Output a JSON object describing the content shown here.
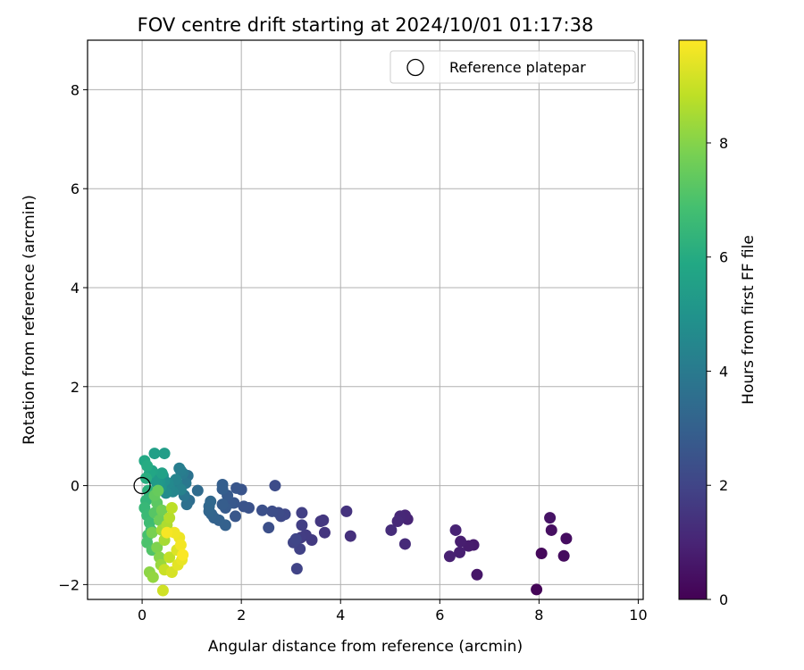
{
  "chart_data": {
    "type": "scatter",
    "title": "FOV centre drift starting at 2024/10/01 01:17:38",
    "xlabel": "Angular distance from reference (arcmin)",
    "ylabel": "Rotation from reference (arcmin)",
    "xlim": [
      -1.1,
      10.1
    ],
    "ylim": [
      -2.3,
      9.0
    ],
    "xticks": [
      0,
      2,
      4,
      6,
      8,
      10
    ],
    "yticks": [
      -2,
      0,
      2,
      4,
      6,
      8
    ],
    "grid": true,
    "legend": {
      "placement": "top-right",
      "entries": [
        {
          "label": "Reference platepar",
          "marker": "open-circle"
        }
      ]
    },
    "reference_point": {
      "x": 0,
      "y": 0
    },
    "colorbar": {
      "label": "Hours from first FF file",
      "colormap": "viridis",
      "range": [
        0,
        9.8
      ],
      "ticks": [
        0,
        2,
        4,
        6,
        8
      ]
    },
    "points": [
      {
        "x": 7.95,
        "y": -2.1,
        "c": 0.1
      },
      {
        "x": 8.05,
        "y": -1.37,
        "c": 0.2
      },
      {
        "x": 8.5,
        "y": -1.42,
        "c": 0.3
      },
      {
        "x": 8.55,
        "y": -1.07,
        "c": 0.35
      },
      {
        "x": 8.25,
        "y": -0.9,
        "c": 0.4
      },
      {
        "x": 8.22,
        "y": -0.65,
        "c": 0.5
      },
      {
        "x": 6.75,
        "y": -1.8,
        "c": 0.6
      },
      {
        "x": 6.68,
        "y": -1.2,
        "c": 0.7
      },
      {
        "x": 6.58,
        "y": -1.22,
        "c": 0.75
      },
      {
        "x": 6.42,
        "y": -1.13,
        "c": 0.8
      },
      {
        "x": 6.4,
        "y": -1.35,
        "c": 0.85
      },
      {
        "x": 6.2,
        "y": -1.43,
        "c": 0.9
      },
      {
        "x": 6.32,
        "y": -0.9,
        "c": 0.95
      },
      {
        "x": 5.35,
        "y": -0.68,
        "c": 1.0
      },
      {
        "x": 5.3,
        "y": -0.6,
        "c": 1.05
      },
      {
        "x": 5.2,
        "y": -0.62,
        "c": 1.1
      },
      {
        "x": 5.15,
        "y": -0.72,
        "c": 1.15
      },
      {
        "x": 5.3,
        "y": -1.18,
        "c": 1.2
      },
      {
        "x": 5.02,
        "y": -0.9,
        "c": 1.25
      },
      {
        "x": 4.2,
        "y": -1.02,
        "c": 1.35
      },
      {
        "x": 4.12,
        "y": -0.52,
        "c": 1.45
      },
      {
        "x": 3.68,
        "y": -0.95,
        "c": 1.5
      },
      {
        "x": 3.65,
        "y": -0.7,
        "c": 1.55
      },
      {
        "x": 3.6,
        "y": -0.72,
        "c": 1.6
      },
      {
        "x": 3.42,
        "y": -1.1,
        "c": 1.65
      },
      {
        "x": 3.3,
        "y": -1.0,
        "c": 1.7
      },
      {
        "x": 3.2,
        "y": -1.05,
        "c": 1.75
      },
      {
        "x": 3.22,
        "y": -0.8,
        "c": 1.8
      },
      {
        "x": 3.22,
        "y": -0.55,
        "c": 1.85
      },
      {
        "x": 3.18,
        "y": -1.28,
        "c": 1.9
      },
      {
        "x": 3.12,
        "y": -1.68,
        "c": 1.95
      },
      {
        "x": 3.05,
        "y": -1.15,
        "c": 2.0
      },
      {
        "x": 3.1,
        "y": -1.08,
        "c": 2.05
      },
      {
        "x": 2.88,
        "y": -0.58,
        "c": 2.1
      },
      {
        "x": 2.8,
        "y": -0.62,
        "c": 2.15
      },
      {
        "x": 2.75,
        "y": -0.55,
        "c": 2.2
      },
      {
        "x": 2.68,
        "y": 0.0,
        "c": 2.25
      },
      {
        "x": 2.62,
        "y": -0.52,
        "c": 2.3
      },
      {
        "x": 2.55,
        "y": -0.85,
        "c": 2.35
      },
      {
        "x": 2.42,
        "y": -0.5,
        "c": 2.4
      },
      {
        "x": 2.15,
        "y": -0.45,
        "c": 2.45
      },
      {
        "x": 2.05,
        "y": -0.42,
        "c": 2.5
      },
      {
        "x": 2.0,
        "y": -0.08,
        "c": 2.55
      },
      {
        "x": 1.9,
        "y": -0.05,
        "c": 2.6
      },
      {
        "x": 1.85,
        "y": -0.35,
        "c": 2.62
      },
      {
        "x": 1.88,
        "y": -0.62,
        "c": 2.65
      },
      {
        "x": 1.78,
        "y": -0.35,
        "c": 2.7
      },
      {
        "x": 1.72,
        "y": -0.2,
        "c": 2.75
      },
      {
        "x": 1.68,
        "y": -0.45,
        "c": 2.8
      },
      {
        "x": 1.62,
        "y": -0.38,
        "c": 2.85
      },
      {
        "x": 1.62,
        "y": -0.07,
        "c": 2.9
      },
      {
        "x": 1.62,
        "y": 0.02,
        "c": 2.95
      },
      {
        "x": 1.68,
        "y": -0.8,
        "c": 3.0
      },
      {
        "x": 1.55,
        "y": -0.7,
        "c": 3.05
      },
      {
        "x": 1.45,
        "y": -0.65,
        "c": 3.1
      },
      {
        "x": 1.4,
        "y": -0.58,
        "c": 3.15
      },
      {
        "x": 1.35,
        "y": -0.52,
        "c": 3.2
      },
      {
        "x": 1.35,
        "y": -0.42,
        "c": 3.25
      },
      {
        "x": 1.38,
        "y": -0.32,
        "c": 3.3
      },
      {
        "x": 1.12,
        "y": -0.1,
        "c": 3.4
      },
      {
        "x": 0.95,
        "y": -0.3,
        "c": 3.5
      },
      {
        "x": 0.9,
        "y": -0.38,
        "c": 3.6
      },
      {
        "x": 0.92,
        "y": 0.2,
        "c": 3.7
      },
      {
        "x": 0.85,
        "y": -0.2,
        "c": 3.8
      },
      {
        "x": 0.88,
        "y": 0.05,
        "c": 3.9
      },
      {
        "x": 0.82,
        "y": 0.25,
        "c": 4.0
      },
      {
        "x": 0.78,
        "y": 0.3,
        "c": 4.1
      },
      {
        "x": 0.75,
        "y": 0.35,
        "c": 4.15
      },
      {
        "x": 0.7,
        "y": 0.05,
        "c": 4.2
      },
      {
        "x": 0.78,
        "y": -0.08,
        "c": 4.3
      },
      {
        "x": 0.68,
        "y": 0.12,
        "c": 4.4
      },
      {
        "x": 0.62,
        "y": -0.12,
        "c": 4.45
      },
      {
        "x": 0.55,
        "y": -0.05,
        "c": 4.5
      },
      {
        "x": 0.52,
        "y": 0.05,
        "c": 4.6
      },
      {
        "x": 0.48,
        "y": -0.15,
        "c": 4.7
      },
      {
        "x": 0.42,
        "y": 0.2,
        "c": 4.8
      },
      {
        "x": 0.45,
        "y": 0.1,
        "c": 4.9
      },
      {
        "x": 0.38,
        "y": -0.02,
        "c": 5.0
      },
      {
        "x": 0.35,
        "y": 0.08,
        "c": 5.1
      },
      {
        "x": 0.3,
        "y": 0.05,
        "c": 5.2
      },
      {
        "x": 0.25,
        "y": 0.12,
        "c": 5.3
      },
      {
        "x": 0.45,
        "y": 0.65,
        "c": 5.4
      },
      {
        "x": 0.25,
        "y": 0.65,
        "c": 5.5
      },
      {
        "x": 0.4,
        "y": 0.25,
        "c": 5.6
      },
      {
        "x": 0.2,
        "y": 0.3,
        "c": 5.7
      },
      {
        "x": 0.15,
        "y": 0.25,
        "c": 5.8
      },
      {
        "x": 0.05,
        "y": 0.5,
        "c": 5.9
      },
      {
        "x": 0.1,
        "y": 0.4,
        "c": 6.0
      },
      {
        "x": 0.08,
        "y": 0.15,
        "c": 6.1
      },
      {
        "x": 0.12,
        "y": -0.1,
        "c": 6.2
      },
      {
        "x": 0.15,
        "y": -0.2,
        "c": 6.3
      },
      {
        "x": 0.08,
        "y": -0.3,
        "c": 6.4
      },
      {
        "x": 0.05,
        "y": -0.45,
        "c": 6.5
      },
      {
        "x": 0.1,
        "y": -0.6,
        "c": 6.6
      },
      {
        "x": 0.15,
        "y": -0.75,
        "c": 6.7
      },
      {
        "x": 0.18,
        "y": -0.9,
        "c": 6.8
      },
      {
        "x": 0.12,
        "y": -1.0,
        "c": 6.9
      },
      {
        "x": 0.1,
        "y": -1.15,
        "c": 7.0
      },
      {
        "x": 0.2,
        "y": -1.3,
        "c": 7.1
      },
      {
        "x": 0.25,
        "y": -0.55,
        "c": 7.2
      },
      {
        "x": 0.3,
        "y": -0.35,
        "c": 7.3
      },
      {
        "x": 0.25,
        "y": -0.2,
        "c": 7.4
      },
      {
        "x": 0.32,
        "y": -0.1,
        "c": 7.5
      },
      {
        "x": 0.35,
        "y": -0.7,
        "c": 7.6
      },
      {
        "x": 0.4,
        "y": -0.5,
        "c": 7.7
      },
      {
        "x": 0.2,
        "y": -0.95,
        "c": 7.8
      },
      {
        "x": 0.3,
        "y": -1.25,
        "c": 7.9
      },
      {
        "x": 0.35,
        "y": -1.45,
        "c": 8.0
      },
      {
        "x": 0.15,
        "y": -1.75,
        "c": 8.1
      },
      {
        "x": 0.22,
        "y": -1.85,
        "c": 8.2
      },
      {
        "x": 0.38,
        "y": -1.6,
        "c": 8.3
      },
      {
        "x": 0.4,
        "y": -0.9,
        "c": 8.4
      },
      {
        "x": 0.45,
        "y": -1.1,
        "c": 8.5
      },
      {
        "x": 0.5,
        "y": -0.8,
        "c": 8.6
      },
      {
        "x": 0.55,
        "y": -0.65,
        "c": 8.7
      },
      {
        "x": 0.6,
        "y": -0.45,
        "c": 8.8
      },
      {
        "x": 0.55,
        "y": -1.45,
        "c": 8.9
      },
      {
        "x": 0.45,
        "y": -1.7,
        "c": 9.0
      },
      {
        "x": 0.42,
        "y": -2.12,
        "c": 9.1
      },
      {
        "x": 0.6,
        "y": -1.75,
        "c": 9.2
      },
      {
        "x": 0.7,
        "y": -1.3,
        "c": 9.3
      },
      {
        "x": 0.72,
        "y": -1.6,
        "c": 9.4
      },
      {
        "x": 0.8,
        "y": -1.5,
        "c": 9.5
      },
      {
        "x": 0.75,
        "y": -1.05,
        "c": 9.55
      },
      {
        "x": 0.65,
        "y": -0.95,
        "c": 9.6
      },
      {
        "x": 0.78,
        "y": -1.2,
        "c": 9.65
      },
      {
        "x": 0.5,
        "y": -0.95,
        "c": 9.7
      },
      {
        "x": 0.82,
        "y": -1.4,
        "c": 9.75
      }
    ]
  }
}
